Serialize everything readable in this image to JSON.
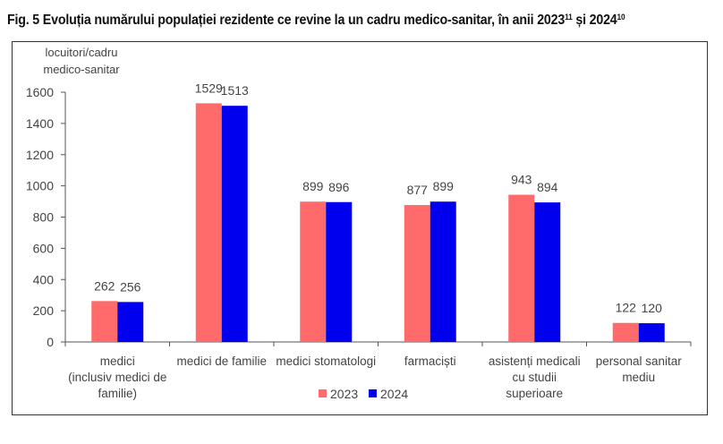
{
  "figure": {
    "title_main": "Fig. 5 Evoluția numărului populației rezidente ce revine la un cadru medico-sanitar, în anii 2023",
    "title_sup1": "11",
    "title_mid": " și 2024",
    "title_sup2": "10"
  },
  "chart_data": {
    "type": "bar",
    "title": "Fig. 5 Evoluția numărului populației rezidente ce revine la un cadru medico-sanitar, în anii 2023 și 2024",
    "ylabel_lines": [
      "locuitori/cadru",
      "medico-sanitar"
    ],
    "xlabel": "",
    "ylim": [
      0,
      1600
    ],
    "yticks": [
      0,
      200,
      400,
      600,
      800,
      1000,
      1200,
      1400,
      1600
    ],
    "grid": false,
    "legend_position": "bottom-center",
    "categories": [
      [
        "medici",
        "(inclusiv medici de",
        "familie)"
      ],
      [
        "medici de familie"
      ],
      [
        "medici stomatologi"
      ],
      [
        "farmaciști"
      ],
      [
        "asistenți medicali",
        "cu studii",
        "superioare"
      ],
      [
        "personal sanitar",
        "mediu"
      ]
    ],
    "series": [
      {
        "name": "2023",
        "color": "#FF6B6B",
        "values": [
          262,
          1529,
          899,
          877,
          943,
          122
        ]
      },
      {
        "name": "2024",
        "color": "#0000EE",
        "values": [
          256,
          1513,
          896,
          899,
          894,
          120
        ]
      }
    ]
  }
}
